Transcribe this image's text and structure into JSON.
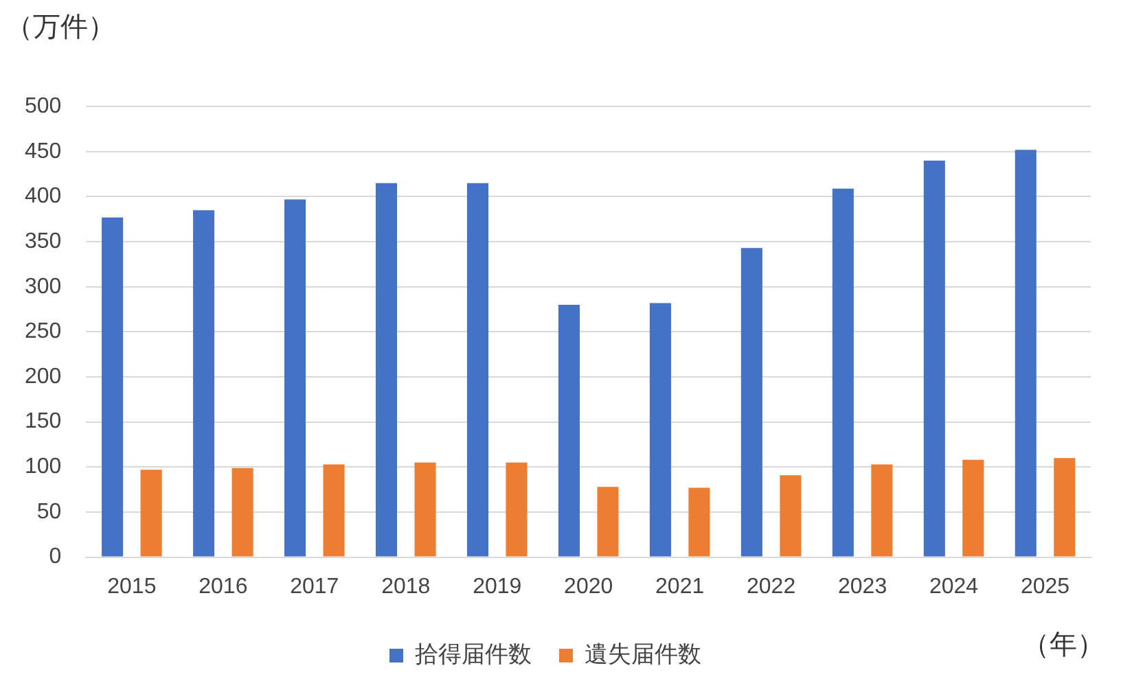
{
  "chart_data": {
    "type": "bar",
    "ylabel": "（万件）",
    "xlabel": "（年）",
    "categories": [
      "2015",
      "2016",
      "2017",
      "2018",
      "2019",
      "2020",
      "2021",
      "2022",
      "2023",
      "2024",
      "2025"
    ],
    "series": [
      {
        "name": "拾得届件数",
        "color": "#4472c4",
        "values": [
          377,
          385,
          397,
          415,
          415,
          280,
          282,
          343,
          409,
          440,
          452
        ]
      },
      {
        "name": "遺失届件数",
        "color": "#ed7d31",
        "values": [
          97,
          99,
          103,
          105,
          105,
          78,
          77,
          91,
          103,
          108,
          110
        ]
      }
    ],
    "ylim": [
      0,
      500
    ],
    "yticks": [
      0,
      50,
      100,
      150,
      200,
      250,
      300,
      350,
      400,
      450,
      500
    ],
    "grid": "y",
    "legend": "bottom"
  }
}
